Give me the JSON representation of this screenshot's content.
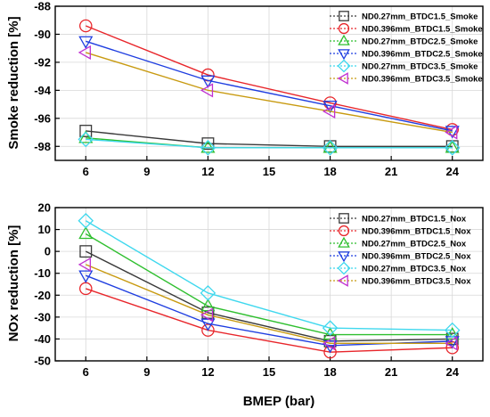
{
  "chart_data": [
    {
      "type": "line",
      "ylabel": "Smoke reduction [%]",
      "xlabel": "",
      "x": [
        6,
        12,
        18,
        24
      ],
      "xlim": [
        4.5,
        25.5
      ],
      "ylim": [
        -99,
        -88
      ],
      "xticks": [
        "6",
        "9",
        "12",
        "15",
        "18",
        "21",
        "24"
      ],
      "yticks": [
        "-98",
        "-96",
        "-94",
        "-92",
        "-90",
        "-88"
      ],
      "grid": true,
      "legend_position": "top-right",
      "series": [
        {
          "name": "ND0.27mm_BTDC1.5_Smoke",
          "x": [
            6,
            12,
            18,
            24
          ],
          "values": [
            -96.9,
            -97.8,
            -98.0,
            -98.0
          ],
          "color": "#3a3a3a",
          "marker": "square"
        },
        {
          "name": "ND0.396mm_BTDC1.5_Smoke",
          "x": [
            6,
            12,
            18,
            24
          ],
          "values": [
            -89.4,
            -92.9,
            -94.9,
            -96.8
          ],
          "color": "#e8262b",
          "marker": "circle"
        },
        {
          "name": "ND0.27mm_BTDC2.5_Smoke",
          "x": [
            6,
            12,
            18,
            24
          ],
          "values": [
            -97.4,
            -98.1,
            -98.1,
            -98.1
          ],
          "color": "#2fbf2f",
          "marker": "triangle-up"
        },
        {
          "name": "ND0.396mm_BTDC2.5_Smoke",
          "x": [
            6,
            12,
            18,
            24
          ],
          "values": [
            -90.5,
            -93.3,
            -95.1,
            -96.9
          ],
          "color": "#1f3ee0",
          "marker": "triangle-down"
        },
        {
          "name": "ND0.27mm_BTDC3.5_Smoke",
          "x": [
            6,
            12,
            18,
            24
          ],
          "values": [
            -97.5,
            -98.1,
            -98.1,
            -98.1
          ],
          "color": "#3fd8ee",
          "marker": "diamond"
        },
        {
          "name": "ND0.396mm_BTDC3.5_Smoke",
          "x": [
            6,
            12,
            18,
            24
          ],
          "values": [
            -91.3,
            -94.0,
            -95.5,
            -97.0
          ],
          "color": "#c030d0",
          "marker": "triangle-left",
          "line_color": "#c89a10"
        }
      ]
    },
    {
      "type": "line",
      "ylabel": "NOx reduction [%]",
      "xlabel": "BMEP (bar)",
      "x": [
        6,
        12,
        18,
        24
      ],
      "xlim": [
        4.5,
        25.5
      ],
      "ylim": [
        -50,
        20
      ],
      "xticks": [
        "6",
        "9",
        "12",
        "15",
        "18",
        "21",
        "24"
      ],
      "yticks": [
        "-50",
        "-40",
        "-30",
        "-20",
        "-10",
        "0",
        "10",
        "20"
      ],
      "grid": true,
      "legend_position": "top-right",
      "series": [
        {
          "name": "ND0.27mm_BTDC1.5_Nox",
          "x": [
            6,
            12,
            18,
            24
          ],
          "values": [
            0,
            -28,
            -41,
            -40
          ],
          "color": "#3a3a3a",
          "marker": "square"
        },
        {
          "name": "ND0.396mm_BTDC1.5_Nox",
          "x": [
            6,
            12,
            18,
            24
          ],
          "values": [
            -17,
            -36,
            -46,
            -44
          ],
          "color": "#e8262b",
          "marker": "circle"
        },
        {
          "name": "ND0.27mm_BTDC2.5_Nox",
          "x": [
            6,
            12,
            18,
            24
          ],
          "values": [
            8,
            -25,
            -38,
            -38
          ],
          "color": "#2fbf2f",
          "marker": "triangle-up"
        },
        {
          "name": "ND0.396mm_BTDC2.5_Nox",
          "x": [
            6,
            12,
            18,
            24
          ],
          "values": [
            -11,
            -33,
            -43,
            -41
          ],
          "color": "#1f3ee0",
          "marker": "triangle-down"
        },
        {
          "name": "ND0.27mm_BTDC3.5_Nox",
          "x": [
            6,
            12,
            18,
            24
          ],
          "values": [
            14,
            -19,
            -35,
            -36
          ],
          "color": "#3fd8ee",
          "marker": "diamond",
          "line_color": "#3fd8ee"
        },
        {
          "name": "ND0.396mm_BTDC3.5_Nox",
          "x": [
            6,
            12,
            18,
            24
          ],
          "values": [
            -6,
            -29,
            -42,
            -42
          ],
          "color": "#c030d0",
          "marker": "triangle-left",
          "line_color": "#c89a10"
        }
      ]
    }
  ]
}
